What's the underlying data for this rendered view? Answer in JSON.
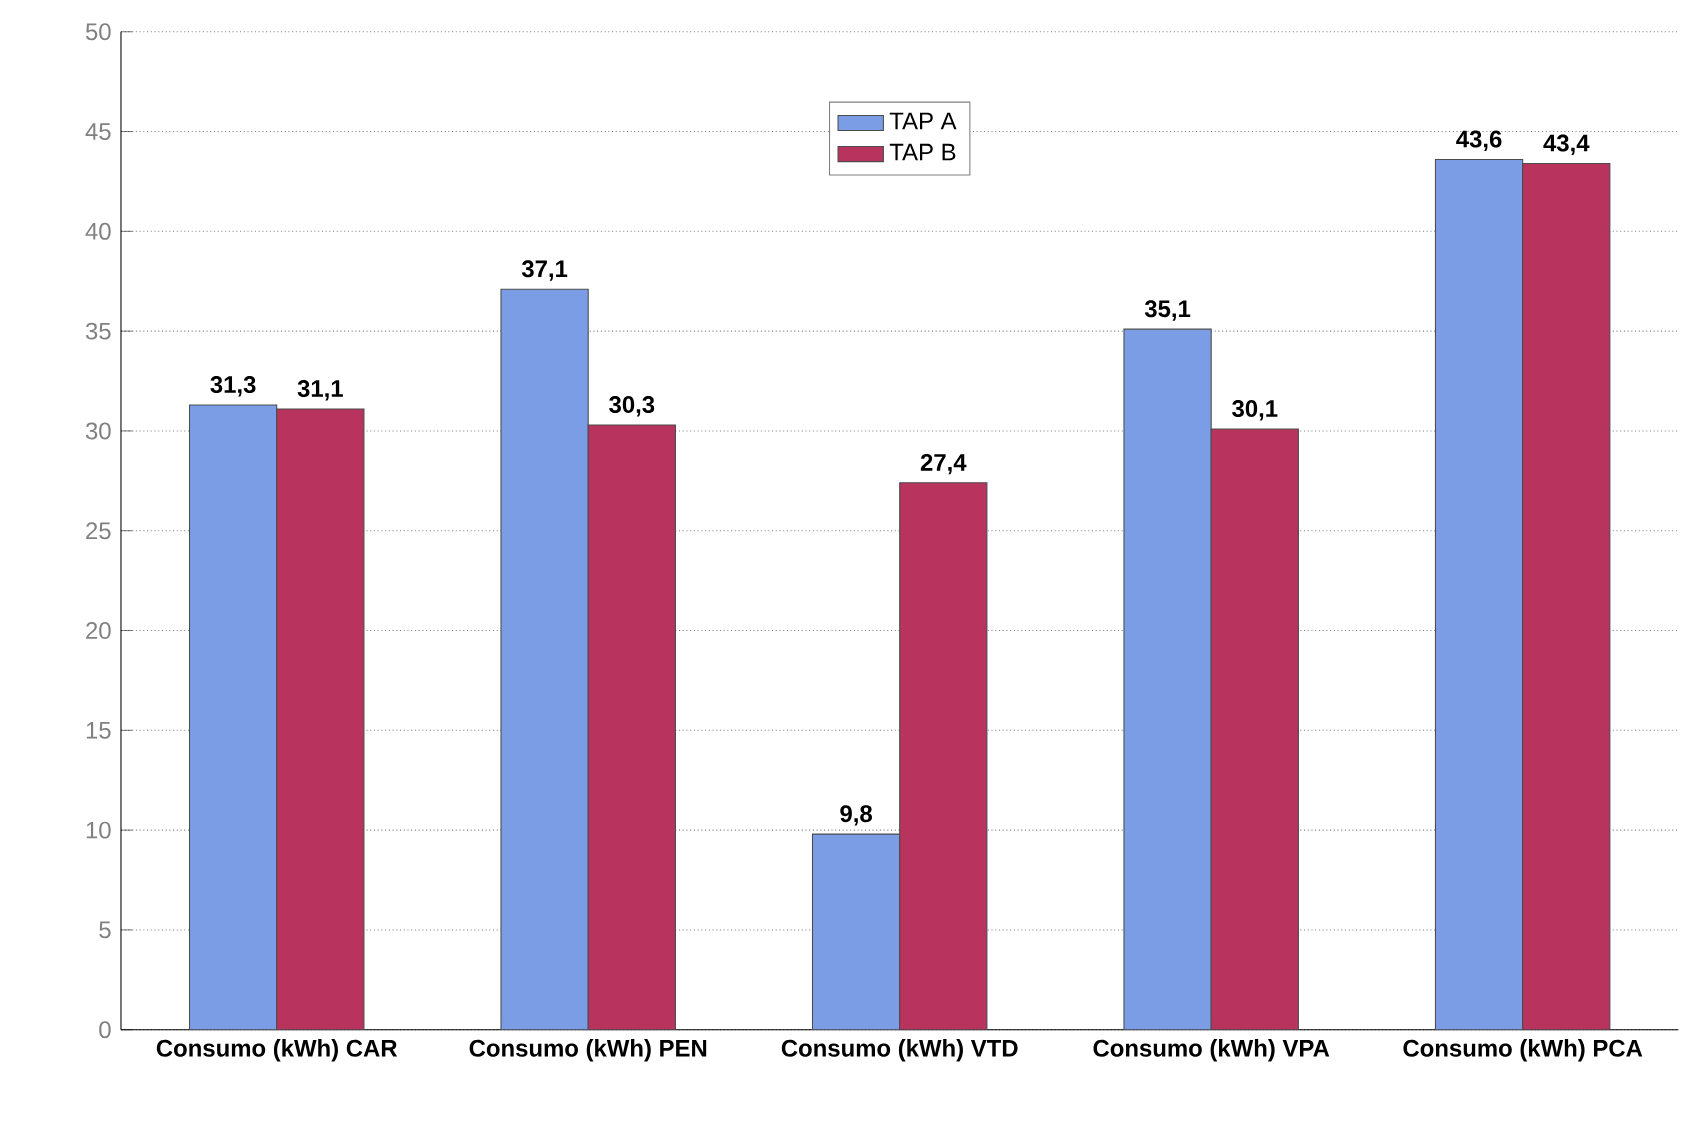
{
  "chart_data": {
    "type": "bar",
    "categories": [
      "Consumo (kWh) CAR",
      "Consumo (kWh) PEN",
      "Consumo (kWh) VTD",
      "Consumo (kWh) VPA",
      "Consumo (kWh) PCA"
    ],
    "series": [
      {
        "name": "TAP A",
        "color": "#7b9de6",
        "values": [
          31.3,
          37.1,
          9.8,
          35.1,
          43.6
        ],
        "value_labels": [
          "31,3",
          "37,1",
          "9,8",
          "35,1",
          "43,6"
        ]
      },
      {
        "name": "TAP B",
        "color": "#b8345f",
        "values": [
          31.1,
          30.3,
          27.4,
          30.1,
          43.4
        ],
        "value_labels": [
          "31,1",
          "30,3",
          "27,4",
          "30,1",
          "43,4"
        ]
      }
    ],
    "ylim": [
      0,
      50
    ],
    "yticks": [
      0,
      5,
      10,
      15,
      20,
      25,
      30,
      35,
      40,
      45,
      50
    ],
    "grid": "y",
    "legend": "top"
  }
}
